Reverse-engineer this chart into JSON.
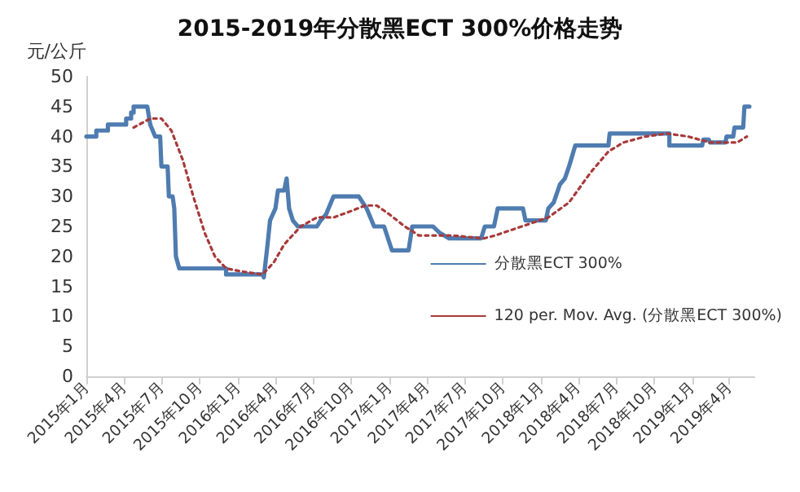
{
  "chart_data": {
    "type": "line",
    "title": "2015-2019年分散黑ECT 300%价格走势",
    "ylabel": "元/公斤",
    "ylim": [
      0,
      50
    ],
    "yticks": [
      0,
      5,
      10,
      15,
      20,
      25,
      30,
      35,
      40,
      45,
      50
    ],
    "xlim": [
      "2015-01-01",
      "2019-05-31"
    ],
    "xticks": [
      {
        "value": "2015-01-01",
        "label": "2015年1月"
      },
      {
        "value": "2015-04-01",
        "label": "2015年4月"
      },
      {
        "value": "2015-07-01",
        "label": "2015年7月"
      },
      {
        "value": "2015-10-01",
        "label": "2015年10月"
      },
      {
        "value": "2016-01-01",
        "label": "2016年1月"
      },
      {
        "value": "2016-04-01",
        "label": "2016年4月"
      },
      {
        "value": "2016-07-01",
        "label": "2016年7月"
      },
      {
        "value": "2016-10-01",
        "label": "2016年10月"
      },
      {
        "value": "2017-01-01",
        "label": "2017年1月"
      },
      {
        "value": "2017-04-01",
        "label": "2017年4月"
      },
      {
        "value": "2017-07-01",
        "label": "2017年7月"
      },
      {
        "value": "2017-10-01",
        "label": "2017年10月"
      },
      {
        "value": "2018-01-01",
        "label": "2018年1月"
      },
      {
        "value": "2018-04-01",
        "label": "2018年4月"
      },
      {
        "value": "2018-07-01",
        "label": "2018年7月"
      },
      {
        "value": "2018-10-01",
        "label": "2018年10月"
      },
      {
        "value": "2019-01-01",
        "label": "2019年1月"
      },
      {
        "value": "2019-04-01",
        "label": "2019年4月"
      }
    ],
    "grid": false,
    "legend": "right",
    "marker": "none",
    "series": [
      {
        "name": "分散黑ECT 300%",
        "color": "#4f7cb0",
        "line_style": "solid",
        "x": [
          "2015-01-01",
          "2015-01-25",
          "2015-01-25",
          "2015-02-22",
          "2015-02-22",
          "2015-04-07",
          "2015-04-07",
          "2015-04-19",
          "2015-04-19",
          "2015-04-25",
          "2015-04-25",
          "2015-05-28",
          "2015-06-04",
          "2015-06-16",
          "2015-06-28",
          "2015-07-01",
          "2015-07-16",
          "2015-07-19",
          "2015-07-28",
          "2015-08-01",
          "2015-08-05",
          "2015-08-13",
          "2015-12-04",
          "2015-12-04",
          "2016-03-01",
          "2016-03-04",
          "2016-03-13",
          "2016-03-19",
          "2016-04-01",
          "2016-04-07",
          "2016-04-22",
          "2016-04-28",
          "2016-05-04",
          "2016-05-13",
          "2016-05-25",
          "2016-07-10",
          "2016-07-19",
          "2016-08-01",
          "2016-08-19",
          "2016-10-19",
          "2016-11-07",
          "2016-11-25",
          "2016-12-19",
          "2017-01-07",
          "2017-02-16",
          "2017-02-25",
          "2017-04-16",
          "2017-05-01",
          "2017-05-25",
          "2017-08-10",
          "2017-08-19",
          "2017-09-10",
          "2017-09-19",
          "2017-10-16",
          "2017-11-19",
          "2017-11-25",
          "2018-01-13",
          "2018-01-19",
          "2018-02-01",
          "2018-02-16",
          "2018-02-28",
          "2018-03-10",
          "2018-03-25",
          "2018-06-13",
          "2018-06-16",
          "2018-11-07",
          "2018-11-07",
          "2019-01-25",
          "2019-01-28",
          "2019-02-10",
          "2019-02-13",
          "2019-03-22",
          "2019-03-25",
          "2019-04-10",
          "2019-04-13",
          "2019-05-04",
          "2019-05-07",
          "2019-05-19"
        ],
        "values": [
          40,
          40,
          41,
          41,
          42,
          42,
          43,
          43,
          44,
          44,
          45,
          45,
          42,
          40,
          40,
          35,
          35,
          30,
          30,
          28,
          20,
          18,
          18,
          17,
          17,
          16.5,
          22,
          26,
          28,
          31,
          31,
          33,
          28,
          26,
          25,
          25,
          26,
          27,
          30,
          30,
          28,
          25,
          25,
          21,
          21,
          25,
          25,
          24,
          23,
          23,
          25,
          25,
          28,
          28,
          28,
          26,
          26,
          28,
          29,
          32,
          33,
          35,
          38.5,
          38.5,
          40.5,
          40.5,
          38.5,
          38.5,
          39.5,
          39.5,
          39,
          39,
          40,
          40,
          41.5,
          41.5,
          45,
          45
        ]
      },
      {
        "name": "120 per. Mov. Avg. (分散黑ECT 300%)",
        "color": "#a83a3a",
        "line_style": "dotted",
        "x": [
          "2015-04-25",
          "2015-06-04",
          "2015-07-01",
          "2015-07-25",
          "2015-08-22",
          "2015-09-16",
          "2015-10-13",
          "2015-11-07",
          "2015-12-04",
          "2016-01-10",
          "2016-03-01",
          "2016-03-28",
          "2016-04-22",
          "2016-06-01",
          "2016-07-10",
          "2016-08-19",
          "2016-09-28",
          "2016-11-04",
          "2016-12-01",
          "2017-01-01",
          "2017-02-07",
          "2017-03-13",
          "2017-06-01",
          "2017-08-16",
          "2017-09-13",
          "2017-11-16",
          "2018-01-19",
          "2018-03-10",
          "2018-05-01",
          "2018-06-13",
          "2018-07-19",
          "2018-09-10",
          "2018-11-01",
          "2018-12-22",
          "2019-02-13",
          "2019-03-22",
          "2019-04-19",
          "2019-05-13"
        ],
        "values": [
          41.5,
          43,
          43,
          41,
          36,
          30,
          24,
          20,
          18,
          17.5,
          17,
          19,
          22,
          25,
          26.5,
          26.5,
          27.5,
          28.5,
          28.5,
          27,
          25,
          23.5,
          23.5,
          23,
          23.5,
          25,
          26.5,
          29,
          34,
          37.5,
          39,
          40,
          40.5,
          40,
          39,
          39,
          39,
          40
        ]
      }
    ]
  }
}
